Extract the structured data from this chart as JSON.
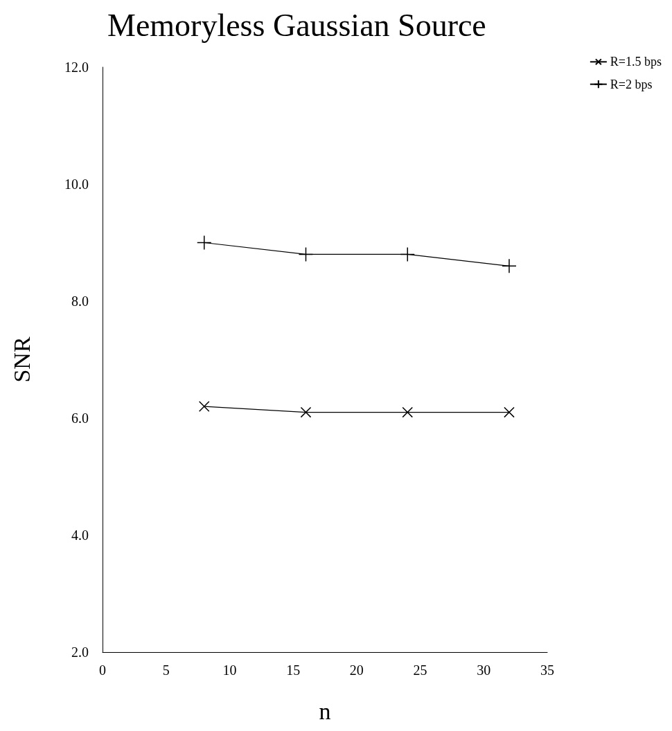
{
  "chart_data": {
    "type": "line",
    "title": "Memoryless Gaussian Source",
    "xlabel": "n",
    "ylabel": "SNR",
    "x": [
      8,
      16,
      24,
      32
    ],
    "series": [
      {
        "name": "R=1.5 bps",
        "color": "#000000",
        "values": [
          6.2,
          6.1,
          6.1,
          6.1
        ]
      },
      {
        "name": "R=2 bps",
        "color": "#000000",
        "values": [
          9.0,
          8.8,
          8.8,
          8.6
        ]
      }
    ],
    "xlim": [
      0,
      35
    ],
    "xticks": [
      0,
      5,
      10,
      15,
      20,
      25,
      30,
      35
    ],
    "ylim": [
      2,
      12
    ],
    "yticks": [
      {
        "value": 2,
        "label": "2.0"
      },
      {
        "value": 4,
        "label": "4.0"
      },
      {
        "value": 6,
        "label": "6.0"
      },
      {
        "value": 8,
        "label": "8.0"
      },
      {
        "value": 10,
        "label": "10.0"
      },
      {
        "value": 12,
        "label": "12.0"
      }
    ],
    "grid": false,
    "legend": "top right",
    "marker": "cross",
    "line_style": "solid"
  }
}
